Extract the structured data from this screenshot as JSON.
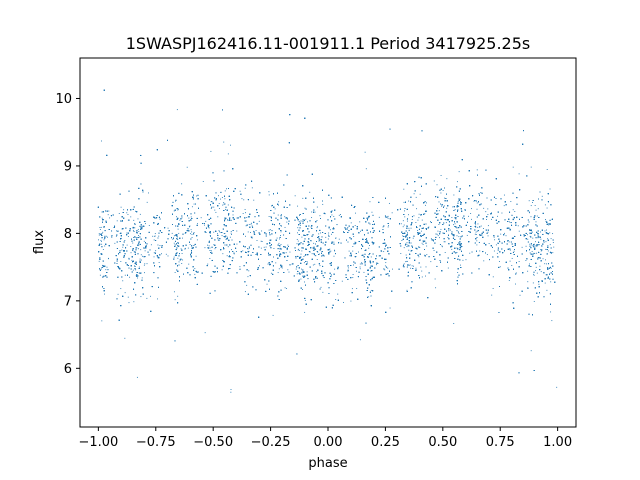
{
  "chart_data": {
    "type": "scatter",
    "title": "1SWASPJ162416.11-001911.1 Period 3417925.25s",
    "xlabel": "phase",
    "ylabel": "flux",
    "xlim": [
      -1.08,
      1.08
    ],
    "ylim": [
      5.13,
      10.6
    ],
    "xticks": [
      -1.0,
      -0.75,
      -0.5,
      -0.25,
      0.0,
      0.25,
      0.5,
      0.75,
      1.0
    ],
    "xtick_labels": [
      "−1.00",
      "−0.75",
      "−0.50",
      "−0.25",
      "0.00",
      "0.25",
      "0.50",
      "0.75",
      "1.00"
    ],
    "yticks": [
      6,
      7,
      8,
      9,
      10
    ],
    "ytick_labels": [
      "6",
      "7",
      "8",
      "9",
      "10"
    ],
    "grid": false,
    "marker_color": "#1f77b4",
    "description_of_data": "dense phase-folded light curve, ~8000 points per repeat, mean flux ~7.9, band ~7.2-8.6 with outliers 5.4-10.4",
    "x_range": [
      -1.0,
      1.0
    ],
    "y_center": 7.9,
    "y_core_sd": 0.35,
    "y_min": 5.4,
    "y_max": 10.4
  }
}
